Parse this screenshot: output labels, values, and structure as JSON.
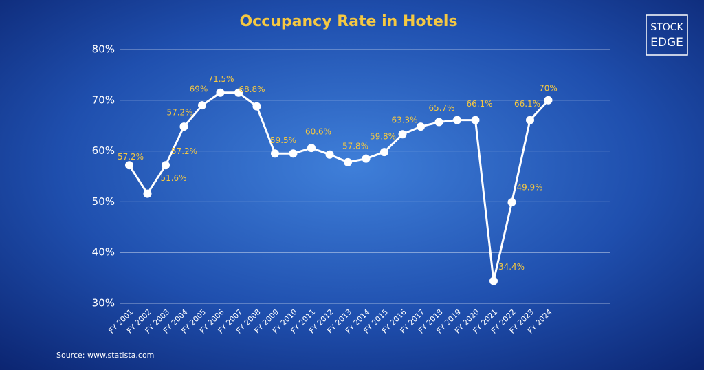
{
  "chart_data": {
    "type": "line",
    "title": "Occupancy Rate in Hotels",
    "categories": [
      "FY 2001",
      "FY 2002",
      "FY 2003",
      "FY 2004",
      "FY 2005",
      "FY 2006",
      "FY 2007",
      "FY 2008",
      "FY 2009",
      "FY 2010",
      "FY 2011",
      "FY 2012",
      "FY 2013",
      "FY 2014",
      "FY 2015",
      "FY 2016",
      "FY 2017",
      "FY 2018",
      "FY 2019",
      "FY 2020",
      "FY 2021",
      "FY 2022",
      "FY 2023",
      "FY 2024"
    ],
    "values": [
      57.2,
      51.6,
      57.2,
      64.8,
      69,
      71.5,
      71.5,
      68.8,
      59.5,
      59.5,
      60.6,
      59.3,
      57.8,
      58.5,
      59.8,
      63.3,
      64.8,
      65.7,
      66.1,
      66.1,
      34.4,
      49.9,
      66.1,
      70
    ],
    "value_labels": [
      "57.2%",
      "51.6%",
      "57.2%",
      null,
      "69%",
      "71.5%",
      null,
      "68.8%",
      "59.5%",
      null,
      "60.6%",
      null,
      "57.8%",
      null,
      "59.8%",
      "63.3%",
      null,
      "65.7%",
      null,
      "66.1%",
      "34.4%",
      "49.9%",
      "66.1%",
      "70%"
    ],
    "annotations": [
      {
        "text": "57.2%"
      }
    ],
    "color": "#ffffff",
    "label_color": "#f5c842",
    "ylim": [
      30,
      80
    ],
    "yticks": [
      {
        "value": 30,
        "label": "30%"
      },
      {
        "value": 40,
        "label": "40%"
      },
      {
        "value": 50,
        "label": "50%"
      },
      {
        "value": 60,
        "label": "60%"
      },
      {
        "value": 70,
        "label": "70%"
      },
      {
        "value": 80,
        "label": "80%"
      }
    ],
    "grid": true,
    "source": "Source: www.statista.com",
    "logo": [
      "STOCK",
      "EDGE"
    ]
  }
}
